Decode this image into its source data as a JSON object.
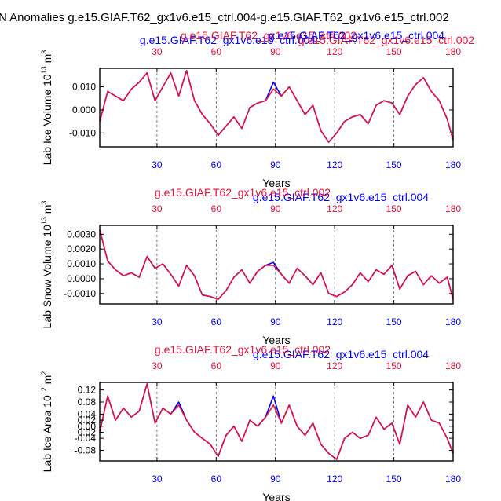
{
  "figure": {
    "title": "N Anomalies g.e15.GIAF.T62_gx1v6.e15_ctrl.004-g.e15.GIAF.T62_gx1v6.e15_ctrl.002"
  },
  "colors": {
    "case_blue": "#0000ff",
    "case_red": "#e8103a",
    "frame": "#000000",
    "grid": "#555555"
  },
  "chart_data": [
    {
      "type": "line",
      "id": "ice-volume",
      "ylabel": "Lab Ice Volume 10^13 m^3",
      "ylabel_parts": {
        "base": "Lab Ice Volume 10",
        "exp1": "13",
        "mid": " m",
        "exp2": "3"
      },
      "xlabel": "Years",
      "case_top_blue": "g.e15.GIAF.T62_gx1v6.e15_ctrl.004",
      "case_top_red": "g.e15.GIAF.T62_gx1v6.e15_ctrl.002",
      "xlim": [
        1,
        180
      ],
      "ylim": [
        -0.016,
        0.018
      ],
      "xticks": [
        30,
        60,
        90,
        120,
        150,
        180
      ],
      "xtick_labels": [
        "30",
        "60",
        "90",
        "120",
        "150",
        "180"
      ],
      "yticks": [
        -0.01,
        0.0,
        0.01
      ],
      "ytick_labels": [
        "-0.010",
        "0.000",
        "0.010"
      ],
      "x": [
        1,
        5,
        9,
        13,
        17,
        21,
        25,
        29,
        33,
        37,
        41,
        45,
        49,
        53,
        57,
        61,
        65,
        69,
        73,
        77,
        81,
        85,
        89,
        93,
        97,
        101,
        105,
        109,
        113,
        117,
        121,
        125,
        129,
        133,
        137,
        141,
        145,
        149,
        153,
        157,
        161,
        165,
        169,
        173,
        177,
        180
      ],
      "series": [
        {
          "name": "g.e15.GIAF.T62_gx1v6.e15_ctrl.004",
          "color": "#0000ff",
          "values": [
            -0.005,
            0.008,
            0.006,
            0.004,
            0.009,
            0.012,
            0.016,
            0.004,
            0.01,
            0.016,
            0.006,
            0.017,
            0.004,
            -0.002,
            -0.006,
            -0.011,
            -0.007,
            -0.003,
            -0.008,
            0.001,
            0.003,
            0.004,
            0.012,
            0.006,
            0.01,
            0.004,
            -0.002,
            0.002,
            -0.009,
            -0.014,
            -0.01,
            -0.005,
            -0.003,
            -0.002,
            -0.006,
            0.002,
            0.004,
            0.003,
            -0.002,
            0.006,
            0.011,
            0.014,
            0.008,
            0.004,
            -0.004,
            -0.013
          ]
        },
        {
          "name": "g.e15.GIAF.T62_gx1v6.e15_ctrl.002",
          "color": "#e8103a",
          "values": [
            -0.005,
            0.008,
            0.006,
            0.004,
            0.009,
            0.012,
            0.016,
            0.004,
            0.01,
            0.016,
            0.006,
            0.017,
            0.004,
            -0.002,
            -0.006,
            -0.011,
            -0.007,
            -0.003,
            -0.008,
            0.001,
            0.003,
            0.004,
            0.009,
            0.006,
            0.01,
            0.004,
            -0.002,
            0.002,
            -0.009,
            -0.014,
            -0.01,
            -0.005,
            -0.003,
            -0.002,
            -0.006,
            0.002,
            0.004,
            0.003,
            -0.002,
            0.006,
            0.011,
            0.014,
            0.008,
            0.004,
            -0.004,
            -0.013
          ]
        }
      ]
    },
    {
      "type": "line",
      "id": "snow-volume",
      "ylabel": "Lab Snow Volume 10^13 m^3",
      "ylabel_parts": {
        "base": "Lab Snow Volume 10",
        "exp1": "13",
        "mid": " m",
        "exp2": "3"
      },
      "xlabel": "Years",
      "case_top_blue": "g.e15.GIAF.T62_gx1v6.e15_ctrl.004",
      "case_top_red": "g.e15.GIAF.T62_gx1v6.e15_ctrl.002",
      "xlim": [
        1,
        180
      ],
      "ylim": [
        -0.0017,
        0.0036
      ],
      "xticks": [
        30,
        60,
        90,
        120,
        150,
        180
      ],
      "xtick_labels": [
        "30",
        "60",
        "90",
        "120",
        "150",
        "180"
      ],
      "yticks": [
        -0.001,
        0.0,
        0.001,
        0.002,
        0.003
      ],
      "ytick_labels": [
        "-0.0010",
        "0.0000",
        "0.0010",
        "0.0020",
        "0.0030"
      ],
      "x": [
        1,
        5,
        9,
        13,
        17,
        21,
        25,
        29,
        33,
        37,
        41,
        45,
        49,
        53,
        57,
        61,
        65,
        69,
        73,
        77,
        81,
        85,
        89,
        93,
        97,
        101,
        105,
        109,
        113,
        117,
        121,
        125,
        129,
        133,
        137,
        141,
        145,
        149,
        153,
        157,
        161,
        165,
        169,
        173,
        177,
        180
      ],
      "series": [
        {
          "name": "g.e15.GIAF.T62_gx1v6.e15_ctrl.004",
          "color": "#0000ff",
          "values": [
            0.0033,
            0.0012,
            0.0006,
            0.0002,
            0.0004,
            0.0001,
            0.0015,
            0.0007,
            0.001,
            0.0003,
            -0.0005,
            0.0009,
            0.0002,
            -0.0011,
            -0.0012,
            -0.0014,
            -0.0008,
            0.0001,
            0.0006,
            -0.0003,
            0.0005,
            0.0009,
            0.0011,
            0.0003,
            -0.0003,
            0.0007,
            0.0002,
            -0.0004,
            0.0004,
            -0.001,
            -0.0012,
            -0.0009,
            -0.0004,
            0.0004,
            -0.0002,
            0.0006,
            0.0003,
            0.0009,
            -0.0007,
            0.0002,
            0.0005,
            -0.0004,
            0.0002,
            -0.0003,
            0.0001,
            -0.0014
          ]
        },
        {
          "name": "g.e15.GIAF.T62_gx1v6.e15_ctrl.002",
          "color": "#e8103a",
          "values": [
            0.0033,
            0.0012,
            0.0006,
            0.0002,
            0.0004,
            0.0001,
            0.0015,
            0.0007,
            0.001,
            0.0003,
            -0.0005,
            0.0009,
            0.0002,
            -0.0011,
            -0.0012,
            -0.0014,
            -0.0008,
            0.0001,
            0.0006,
            -0.0003,
            0.0005,
            0.0009,
            0.0009,
            0.0003,
            -0.0003,
            0.0007,
            0.0002,
            -0.0004,
            0.0004,
            -0.001,
            -0.0012,
            -0.0009,
            -0.0004,
            0.0004,
            -0.0002,
            0.0006,
            0.0003,
            0.0009,
            -0.0007,
            0.0002,
            0.0005,
            -0.0004,
            0.0002,
            -0.0003,
            0.0001,
            -0.0014
          ]
        }
      ]
    },
    {
      "type": "line",
      "id": "ice-area",
      "ylabel": "Lab Ice Area 10^12 m^2",
      "ylabel_parts": {
        "base": "Lab Ice Area 10",
        "exp1": "12",
        "mid": " m",
        "exp2": "2"
      },
      "xlabel": "Years",
      "case_top_blue": "g.e15.GIAF.T62_gx1v6.e15_ctrl.004",
      "case_top_red": "g.e15.GIAF.T62_gx1v6.e15_ctrl.002",
      "xlim": [
        1,
        180
      ],
      "ylim": [
        -0.115,
        0.145
      ],
      "xticks": [
        30,
        60,
        90,
        120,
        150,
        180
      ],
      "xtick_labels": [
        "30",
        "60",
        "90",
        "120",
        "150",
        "180"
      ],
      "yticks": [
        -0.08,
        -0.04,
        -0.02,
        0.0,
        0.02,
        0.04,
        0.08,
        0.12
      ],
      "ytick_labels": [
        "-0.08",
        "-0.04",
        "-0.02",
        "0.00",
        "0.02",
        "0.04",
        "0.08",
        "0.12"
      ],
      "x": [
        1,
        5,
        9,
        13,
        17,
        21,
        25,
        29,
        33,
        37,
        41,
        45,
        49,
        53,
        57,
        61,
        65,
        69,
        73,
        77,
        81,
        85,
        89,
        93,
        97,
        101,
        105,
        109,
        113,
        117,
        121,
        125,
        129,
        133,
        137,
        141,
        145,
        149,
        153,
        157,
        161,
        165,
        169,
        173,
        177,
        180
      ],
      "series": [
        {
          "name": "g.e15.GIAF.T62_gx1v6.e15_ctrl.004",
          "color": "#0000ff",
          "values": [
            -0.02,
            0.1,
            0.02,
            0.06,
            0.03,
            0.05,
            0.14,
            0.01,
            0.06,
            0.04,
            0.08,
            0.02,
            -0.02,
            -0.04,
            -0.06,
            -0.1,
            -0.03,
            0.0,
            -0.05,
            0.02,
            0.0,
            0.03,
            0.1,
            0.01,
            0.07,
            0.0,
            -0.03,
            0.01,
            -0.06,
            -0.09,
            -0.11,
            -0.04,
            -0.02,
            -0.04,
            -0.03,
            0.03,
            -0.01,
            0.01,
            -0.06,
            0.07,
            0.03,
            0.08,
            0.02,
            0.01,
            -0.04,
            -0.09
          ]
        },
        {
          "name": "g.e15.GIAF.T62_gx1v6.e15_ctrl.002",
          "color": "#e8103a",
          "values": [
            -0.02,
            0.1,
            0.02,
            0.06,
            0.03,
            0.05,
            0.14,
            0.01,
            0.06,
            0.04,
            0.07,
            0.02,
            -0.02,
            -0.04,
            -0.06,
            -0.1,
            -0.03,
            0.0,
            -0.05,
            0.02,
            0.0,
            0.03,
            0.07,
            0.01,
            0.07,
            0.0,
            -0.03,
            0.01,
            -0.06,
            -0.09,
            -0.11,
            -0.04,
            -0.02,
            -0.04,
            -0.03,
            0.03,
            -0.01,
            0.01,
            -0.06,
            0.07,
            0.03,
            0.08,
            0.02,
            0.01,
            -0.04,
            -0.09
          ]
        }
      ]
    }
  ]
}
